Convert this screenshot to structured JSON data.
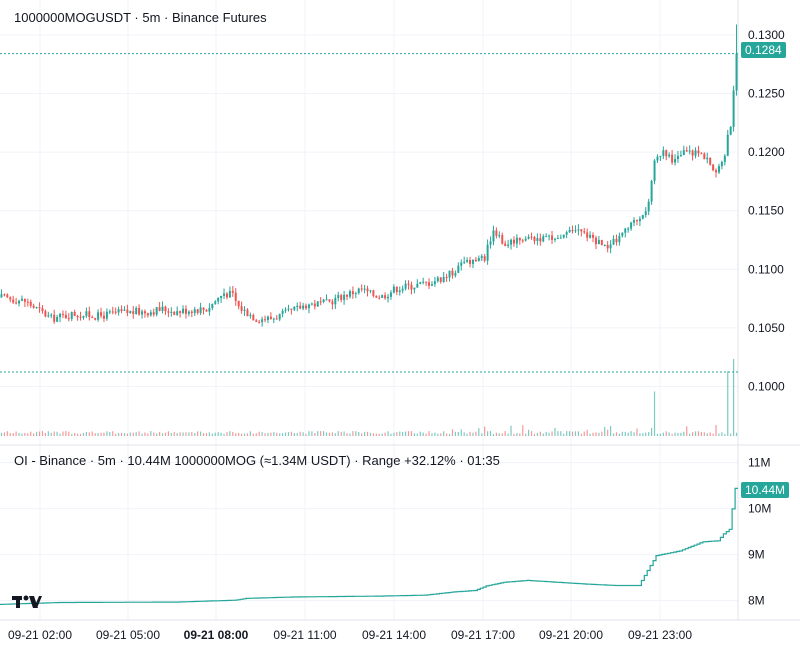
{
  "chart_data": [
    {
      "type": "candlestick",
      "title": "1000000MOGUSDT · 5m · Binance Futures",
      "x_tick_labels": [
        "09-21 02:00",
        "09-21 05:00",
        "09-21 08:00",
        "09-21 11:00",
        "09-21 14:00",
        "09-21 17:00",
        "09-21 20:00",
        "09-21 23:00"
      ],
      "y_tick_labels": [
        "0.1300",
        "0.1250",
        "0.1200",
        "0.1150",
        "0.1100",
        "0.1050",
        "0.1000"
      ],
      "ylim": [
        0.0968,
        0.1311
      ],
      "last_price_label": "0.1284",
      "last_price": 0.1284,
      "colors": {
        "up": "#26a69a",
        "down": "#ef5350",
        "price_line": "#26a69a"
      },
      "close_keypoints": [
        [
          0,
          0.1076
        ],
        [
          8,
          0.1073
        ],
        [
          17,
          0.1058
        ],
        [
          25,
          0.1062
        ],
        [
          33,
          0.106
        ],
        [
          40,
          0.1063
        ],
        [
          50,
          0.1064
        ],
        [
          55,
          0.1066
        ],
        [
          60,
          0.1064
        ],
        [
          66,
          0.1066
        ],
        [
          70,
          0.1066
        ],
        [
          76,
          0.108
        ],
        [
          79,
          0.1078
        ],
        [
          81,
          0.1068
        ],
        [
          87,
          0.1058
        ],
        [
          92,
          0.1058
        ],
        [
          99,
          0.1064
        ],
        [
          104,
          0.107
        ],
        [
          111,
          0.1071
        ],
        [
          117,
          0.1078
        ],
        [
          123,
          0.1083
        ],
        [
          126,
          0.1079
        ],
        [
          130,
          0.1077
        ],
        [
          135,
          0.1084
        ],
        [
          145,
          0.1088
        ],
        [
          152,
          0.1094
        ],
        [
          158,
          0.1105
        ],
        [
          165,
          0.111
        ],
        [
          168,
          0.1135
        ],
        [
          171,
          0.1121
        ],
        [
          177,
          0.1127
        ],
        [
          184,
          0.1127
        ],
        [
          190,
          0.1124
        ],
        [
          196,
          0.1133
        ],
        [
          202,
          0.1127
        ],
        [
          206,
          0.1118
        ],
        [
          211,
          0.1127
        ],
        [
          216,
          0.114
        ],
        [
          221,
          0.1155
        ],
        [
          223,
          0.119
        ],
        [
          226,
          0.1204
        ],
        [
          229,
          0.119
        ],
        [
          233,
          0.12
        ],
        [
          237,
          0.12
        ],
        [
          241,
          0.1196
        ],
        [
          243,
          0.1182
        ],
        [
          245,
          0.1185
        ],
        [
          247,
          0.12
        ],
        [
          249,
          0.1225
        ],
        [
          251,
          0.1284
        ]
      ],
      "volume_spikes": [
        [
          223,
          0.55
        ],
        [
          244,
          0.35
        ],
        [
          248,
          0.8
        ],
        [
          250,
          0.95
        ]
      ]
    },
    {
      "type": "line",
      "title": "OI - Binance · 5m · 10.44M 1000000MOG (≈1.34M USDT) · Range +32.12% · 01:35",
      "x_tick_labels": [
        "09-21 02:00",
        "09-21 05:00",
        "09-21 08:00",
        "09-21 11:00",
        "09-21 14:00",
        "09-21 17:00",
        "09-21 20:00",
        "09-21 23:00"
      ],
      "y_tick_labels": [
        "11M",
        "10M",
        "9M",
        "8M"
      ],
      "ylim": [
        7.58,
        11.1
      ],
      "last_value_label": "10.44M",
      "last_value": 10.44,
      "colors": {
        "line": "#26a69a",
        "badge": "#26a69a"
      },
      "series": [
        {
          "keypoints": [
            [
              0,
              7.92
            ],
            [
              20,
              7.96
            ],
            [
              60,
              7.97
            ],
            [
              80,
              8.01
            ],
            [
              84,
              8.05
            ],
            [
              100,
              8.08
            ],
            [
              130,
              8.1
            ],
            [
              145,
              8.12
            ],
            [
              155,
              8.19
            ],
            [
              162,
              8.22
            ],
            [
              166,
              8.32
            ],
            [
              172,
              8.4
            ],
            [
              180,
              8.44
            ],
            [
              190,
              8.4
            ],
            [
              200,
              8.36
            ],
            [
              210,
              8.33
            ],
            [
              218,
              8.33
            ],
            [
              224,
              8.98
            ],
            [
              232,
              9.08
            ],
            [
              240,
              9.28
            ],
            [
              245,
              9.3
            ],
            [
              247,
              9.45
            ],
            [
              249,
              9.55
            ],
            [
              251,
              10.44
            ]
          ]
        }
      ]
    }
  ],
  "logo_text": "TV"
}
